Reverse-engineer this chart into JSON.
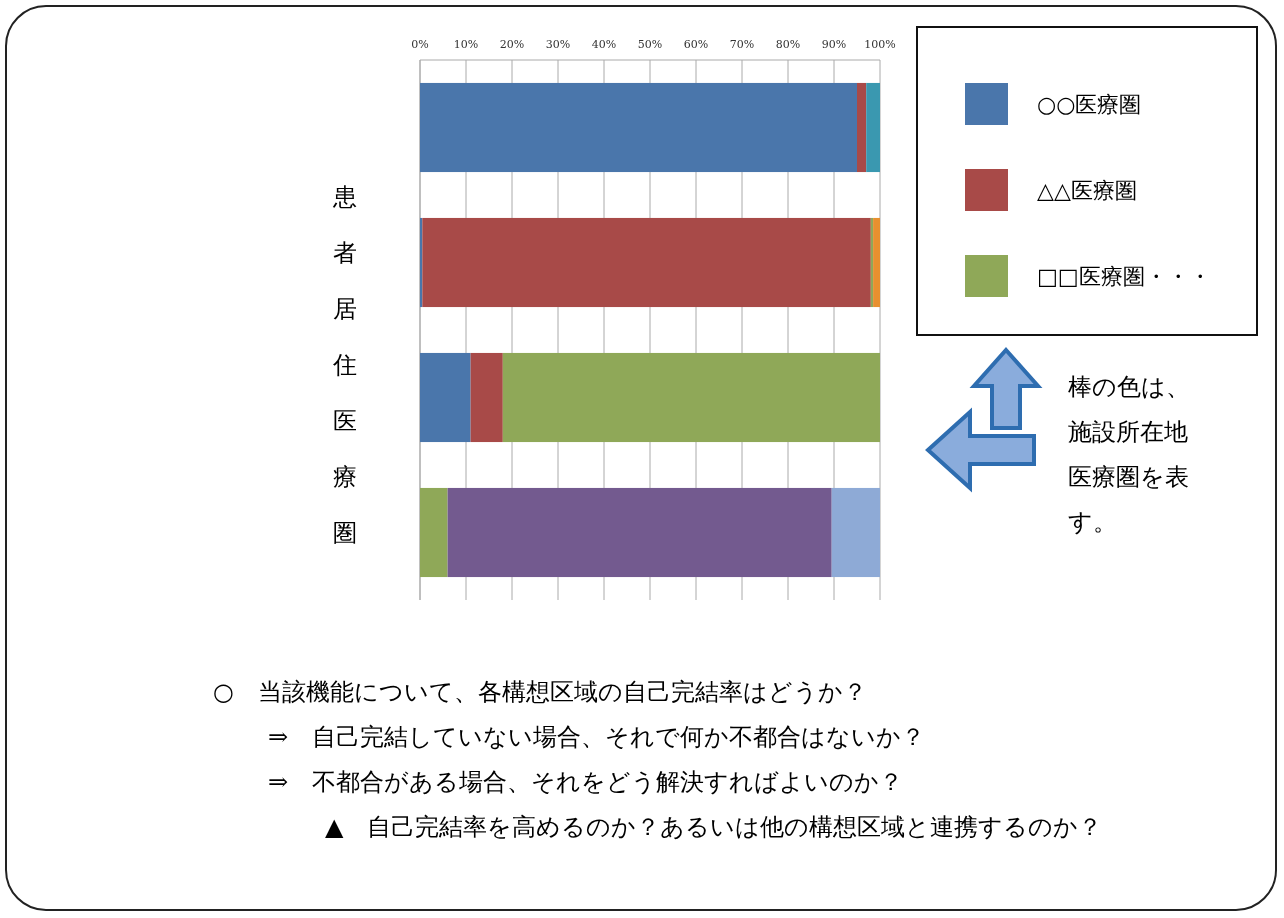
{
  "chart_data": {
    "type": "bar",
    "orientation": "horizontal",
    "stacked": true,
    "ylabel": "患者居住医療圏",
    "categories": [
      null,
      null,
      null,
      null
    ],
    "series": [
      {
        "name": "○○医療圏",
        "color": "#4a76ab",
        "values": [
          95,
          0.5,
          11,
          0
        ]
      },
      {
        "name": "△△医療圏",
        "color": "#a84a48",
        "values": [
          2,
          97.5,
          7,
          0
        ]
      },
      {
        "name": "□□医療圏・・・",
        "color": "#8fa858",
        "values": [
          0,
          0.5,
          82,
          6
        ]
      },
      {
        "color": "#735a8f",
        "values": [
          0,
          0,
          0,
          83.5
        ]
      },
      {
        "color": "#8eaad6",
        "values": [
          0,
          0,
          0,
          10.5
        ]
      },
      {
        "color": "#3a98b0",
        "values": [
          3,
          0,
          0,
          0
        ]
      },
      {
        "color": "#e8902f",
        "values": [
          0,
          1.5,
          0,
          0
        ]
      }
    ],
    "xlim": [
      0,
      100
    ],
    "xticks": [
      {
        "value": 0,
        "label": "0%"
      },
      {
        "value": 10,
        "label": "10%"
      },
      {
        "value": 20,
        "label": "20%"
      },
      {
        "value": 30,
        "label": "30%"
      },
      {
        "value": 40,
        "label": "40%"
      },
      {
        "value": 50,
        "label": "50%"
      },
      {
        "value": 60,
        "label": "60%"
      },
      {
        "value": 70,
        "label": "70%"
      },
      {
        "value": 80,
        "label": "80%"
      },
      {
        "value": 90,
        "label": "90%"
      },
      {
        "value": 100,
        "label": "100%"
      }
    ],
    "grid": "x",
    "legend": "top right",
    "tick_labels": "x",
    "annotations": [
      "棒の色は、施設所在地医療圏を表す。",
      "○　当該機能について、各構想区域の自己完結率はどうか？",
      "⇒　自己完結していない場合、それで何か不都合はないか？",
      "⇒　不都合がある場合、それをどう解決すればよいのか？",
      "▲　自己完結率を高めるのか？あるいは他の構想区域と連携するのか？"
    ]
  }
}
